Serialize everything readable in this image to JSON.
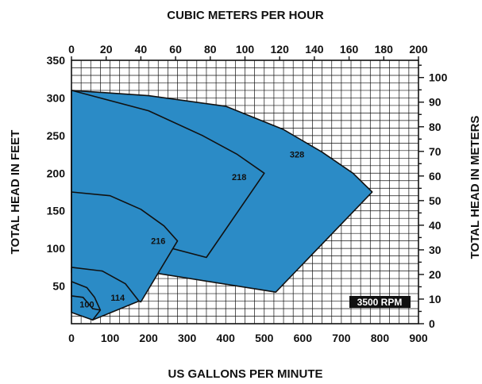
{
  "chart_data": {
    "type": "area",
    "title": "",
    "xlabel": "US GALLONS PER MINUTE",
    "ylabel": "TOTAL HEAD IN FEET",
    "top_axis_label": "CUBIC METERS PER HOUR",
    "right_axis_label": "TOTAL HEAD IN METERS",
    "xlim": [
      0,
      900
    ],
    "ylim": [
      0,
      350
    ],
    "top_xlim": [
      0,
      200
    ],
    "right_ylim": [
      0,
      107
    ],
    "x_ticks": [
      "0",
      "100",
      "200",
      "300",
      "400",
      "500",
      "600",
      "700",
      "800",
      "900"
    ],
    "y_ticks": [
      "50",
      "100",
      "150",
      "200",
      "250",
      "300",
      "350"
    ],
    "top_ticks": [
      "0",
      "20",
      "40",
      "60",
      "80",
      "100",
      "120",
      "140",
      "160",
      "180",
      "200"
    ],
    "right_ticks": [
      "0",
      "10",
      "20",
      "30",
      "40",
      "50",
      "60",
      "70",
      "80",
      "90",
      "100"
    ],
    "grid": true,
    "speed_label": "3500 RPM",
    "colors": {
      "fill": "#2b8bc6",
      "line": "#111111",
      "badge": "#111111"
    },
    "series": [
      {
        "name": "328",
        "label_at": [
          585,
          225
        ],
        "boundary": [
          [
            0,
            310
          ],
          [
            200,
            303
          ],
          [
            400,
            289
          ],
          [
            550,
            258
          ],
          [
            650,
            228
          ],
          [
            730,
            200
          ],
          [
            780,
            175
          ],
          [
            530,
            42
          ],
          [
            0,
            85
          ]
        ]
      },
      {
        "name": "218",
        "label_at": [
          435,
          195
        ],
        "boundary": [
          [
            0,
            310
          ],
          [
            200,
            283
          ],
          [
            340,
            250
          ],
          [
            430,
            225
          ],
          [
            500,
            200
          ],
          [
            350,
            88
          ],
          [
            0,
            135
          ]
        ]
      },
      {
        "name": "216",
        "label_at": [
          225,
          110
        ],
        "boundary": [
          [
            0,
            175
          ],
          [
            100,
            170
          ],
          [
            180,
            152
          ],
          [
            240,
            130
          ],
          [
            275,
            110
          ],
          [
            180,
            29
          ],
          [
            0,
            68
          ]
        ]
      },
      {
        "name": "114",
        "label_at": [
          120,
          35
        ],
        "boundary": [
          [
            0,
            75
          ],
          [
            80,
            70
          ],
          [
            140,
            53
          ],
          [
            175,
            30
          ],
          [
            55,
            5
          ],
          [
            0,
            35
          ]
        ]
      },
      {
        "name": "100",
        "label_at": [
          40,
          26
        ],
        "boundary": [
          [
            0,
            56
          ],
          [
            40,
            48
          ],
          [
            60,
            35
          ],
          [
            75,
            18
          ],
          [
            55,
            5
          ],
          [
            0,
            15
          ]
        ]
      }
    ],
    "inner_arcs": [
      [
        [
          0,
          37
        ],
        [
          30,
          35
        ],
        [
          55,
          20
        ],
        [
          75,
          18
        ]
      ]
    ]
  }
}
